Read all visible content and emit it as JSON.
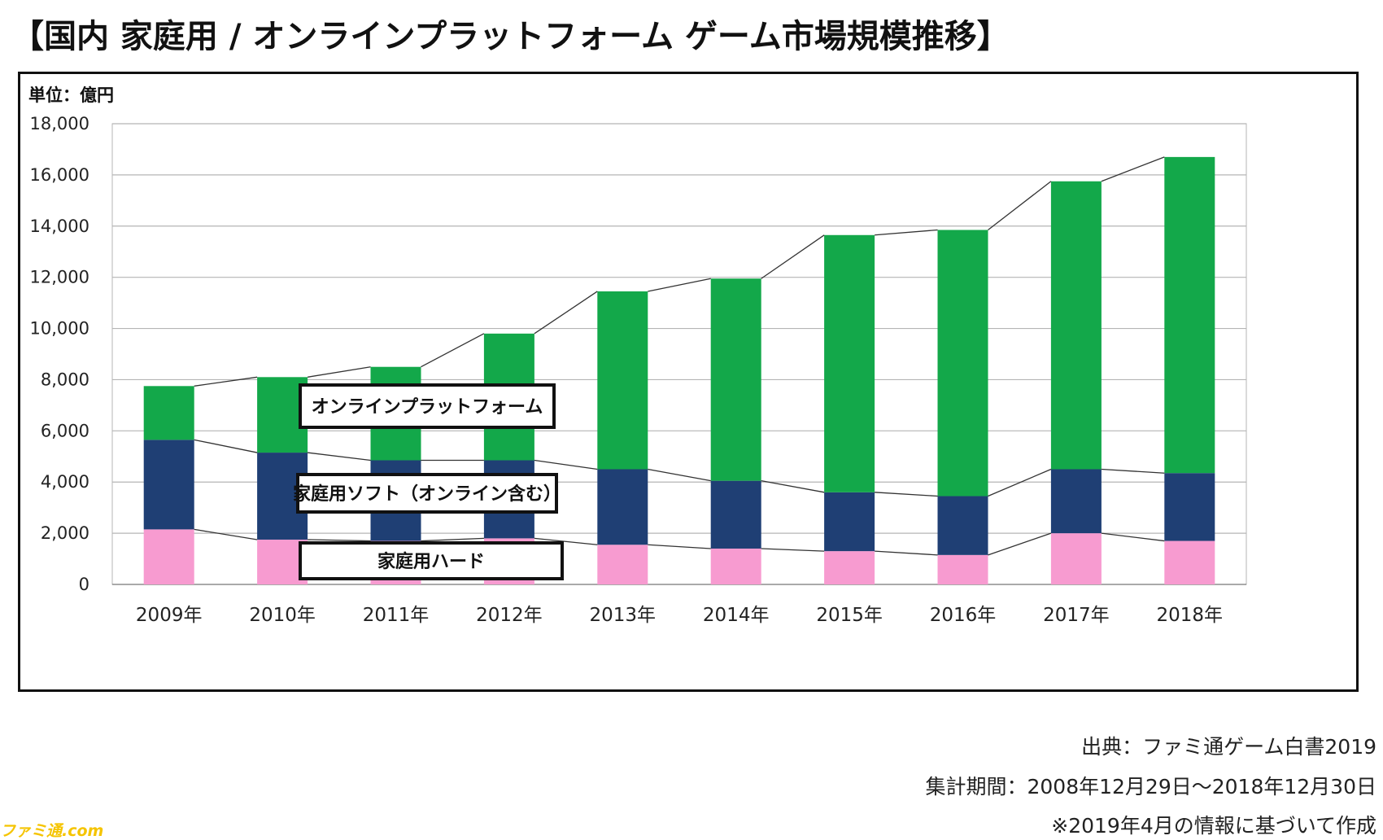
{
  "page": {
    "title": "【国内 家庭用 / オンラインプラットフォーム ゲーム市場規模推移】",
    "unit_label": "単位：億円",
    "source_lines": [
      "出典：ファミ通ゲーム白書2019",
      "集計期間：2008年12月29日～2018年12月30日",
      "※2019年4月の情報に基づいて作成"
    ],
    "watermark": "ファミ通.com"
  },
  "colors": {
    "hardware": "#f79bd0",
    "software": "#1f3f74",
    "online": "#13a84a",
    "grid": "#b5b5b5",
    "connector": "#333333"
  },
  "chart_data": {
    "type": "bar",
    "stacked": true,
    "categories": [
      "2009年",
      "2010年",
      "2011年",
      "2012年",
      "2013年",
      "2014年",
      "2015年",
      "2016年",
      "2017年",
      "2018年"
    ],
    "series": [
      {
        "name": "家庭用ハード",
        "values": [
          2150,
          1750,
          1700,
          1800,
          1550,
          1400,
          1300,
          1150,
          2000,
          1700
        ]
      },
      {
        "name": "家庭用ソフト（オンライン含む）",
        "values": [
          3500,
          3400,
          3150,
          3050,
          2950,
          2650,
          2300,
          2300,
          2500,
          2650
        ]
      },
      {
        "name": "オンラインプラットフォーム",
        "values": [
          2100,
          2950,
          3650,
          4950,
          6950,
          7900,
          10050,
          10400,
          11250,
          12350
        ]
      }
    ],
    "ylim": [
      0,
      18000
    ],
    "yticks": [
      0,
      2000,
      4000,
      6000,
      8000,
      10000,
      12000,
      14000,
      16000,
      18000
    ],
    "ytick_labels": [
      "0",
      "2,000",
      "4,000",
      "6,000",
      "8,000",
      "10,000",
      "12,000",
      "14,000",
      "16,000",
      "18,000"
    ],
    "ylabel": "単位：億円",
    "grid": true,
    "connector_lines": true,
    "legend_placement": "boxed labels inside plot between 2010年 and 2012年"
  }
}
